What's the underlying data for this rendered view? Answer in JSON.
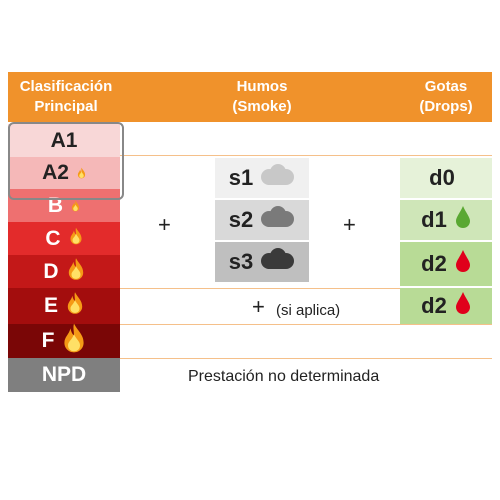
{
  "headers": {
    "classification": [
      "Clasificación",
      "Principal"
    ],
    "smoke": [
      "Humos",
      "(Smoke)"
    ],
    "drops": [
      "Gotas",
      "(Drops)"
    ]
  },
  "classes": [
    {
      "label": "A1",
      "bg": "#f8d7d7",
      "color": "#222",
      "flame": ""
    },
    {
      "label": "A2",
      "bg": "#f5b8b8",
      "color": "#222",
      "flame": "small"
    },
    {
      "label": "B",
      "bg": "#ee7070",
      "color": "#fff",
      "flame": "small"
    },
    {
      "label": "C",
      "bg": "#e32b2b",
      "color": "#fff",
      "flame": "medium"
    },
    {
      "label": "D",
      "bg": "#c31818",
      "color": "#fff",
      "flame": "large"
    },
    {
      "label": "E",
      "bg": "#a30d0d",
      "color": "#fff",
      "flame": "large"
    },
    {
      "label": "F",
      "bg": "#7a0606",
      "color": "#fff",
      "flame": "xlarge"
    },
    {
      "label": "NPD",
      "bg": "#7f7f7f",
      "color": "#fff",
      "flame": ""
    }
  ],
  "smoke": [
    {
      "label": "s1",
      "bg": "#f0f0f0",
      "cloud": "#c8c8c8"
    },
    {
      "label": "s2",
      "bg": "#d9d9d9",
      "cloud": "#7a7a7a"
    },
    {
      "label": "s3",
      "bg": "#bfbfbf",
      "cloud": "#3a3a3a"
    }
  ],
  "drops": [
    {
      "label": "d0",
      "bg": "#e6f2d9",
      "drop_color": ""
    },
    {
      "label": "d1",
      "bg": "#cfe6b8",
      "drop_color": "#5aa832"
    },
    {
      "label": "d2",
      "bg": "#b8db96",
      "drop_color": "#e0001b"
    },
    {
      "label": "d2",
      "bg": "#b8db96",
      "drop_color": "#e0001b"
    }
  ],
  "plus_sign": "+",
  "applies_note": "(si aplica)",
  "npd_text": "Prestación no determinada",
  "colors": {
    "header": "#f0922b",
    "frame": "#888888"
  }
}
